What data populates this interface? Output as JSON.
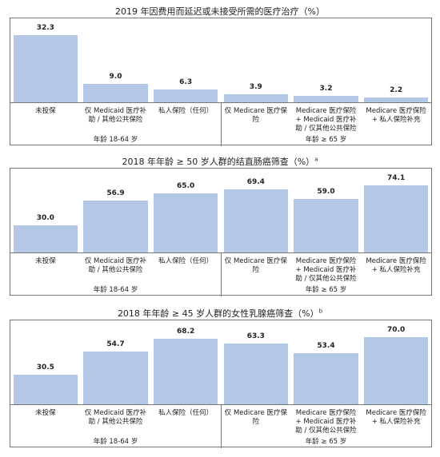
{
  "chart_data": [
    {
      "type": "bar",
      "title": "2019 年因费用而延迟或未接受所需的医疗治疗（%）",
      "categories": [
        "未投保",
        "仅 Medicaid 医疗补助 / 其他公共保险",
        "私人保险（任何）",
        "仅 Medicare 医疗保险",
        "Medicare 医疗保险 + Medicaid 医疗补助 / 仅其他公共保险",
        "Medicare 医疗保险 + 私人保险补充"
      ],
      "values": [
        32.3,
        9.0,
        6.3,
        3.9,
        3.2,
        2.2
      ],
      "value_labels": [
        "32.3",
        "9.0",
        "6.3",
        "3.9",
        "3.2",
        "2.2"
      ],
      "groups": [
        "年龄 18-64 岁",
        "年龄 ≥ 65 岁"
      ],
      "color": "#b4c7e7"
    },
    {
      "type": "bar",
      "title": "2018 年年龄 ≥ 50 岁人群的结直肠癌筛查（%）",
      "title_superscript": "a",
      "categories": [
        "未投保",
        "仅 Medicaid 医疗补助 / 其他公共保险",
        "私人保险（任何）",
        "仅 Medicare 医疗保险",
        "Medicare 医疗保险 + Medicaid 医疗补助 / 仅其他公共保险",
        "Medicare 医疗保险 + 私人保险补充"
      ],
      "values": [
        30.0,
        56.9,
        65.0,
        69.4,
        59.0,
        74.1
      ],
      "value_labels": [
        "30.0",
        "56.9",
        "65.0",
        "69.4",
        "59.0",
        "74.1"
      ],
      "groups": [
        "年龄 18-64 岁",
        "年龄 ≥ 65 岁"
      ],
      "color": "#b4c7e7"
    },
    {
      "type": "bar",
      "title": "2018 年年龄 ≥ 45 岁人群的女性乳腺癌筛查（%）",
      "title_superscript": "b",
      "categories": [
        "未投保",
        "仅 Medicaid 医疗补助 / 其他公共保险",
        "私人保险（任何）",
        "仅 Medicare 医疗保险",
        "Medicare 医疗保险 + Medicaid 医疗补助 / 仅其他公共保险",
        "Medicare 医疗保险 + 私人保险补充"
      ],
      "values": [
        30.5,
        54.7,
        68.2,
        63.3,
        53.4,
        70.0
      ],
      "value_labels": [
        "30.5",
        "54.7",
        "68.2",
        "63.3",
        "53.4",
        "70.0"
      ],
      "groups": [
        "年龄 18-64 岁",
        "年龄 ≥ 65 岁"
      ],
      "color": "#b4c7e7"
    }
  ]
}
